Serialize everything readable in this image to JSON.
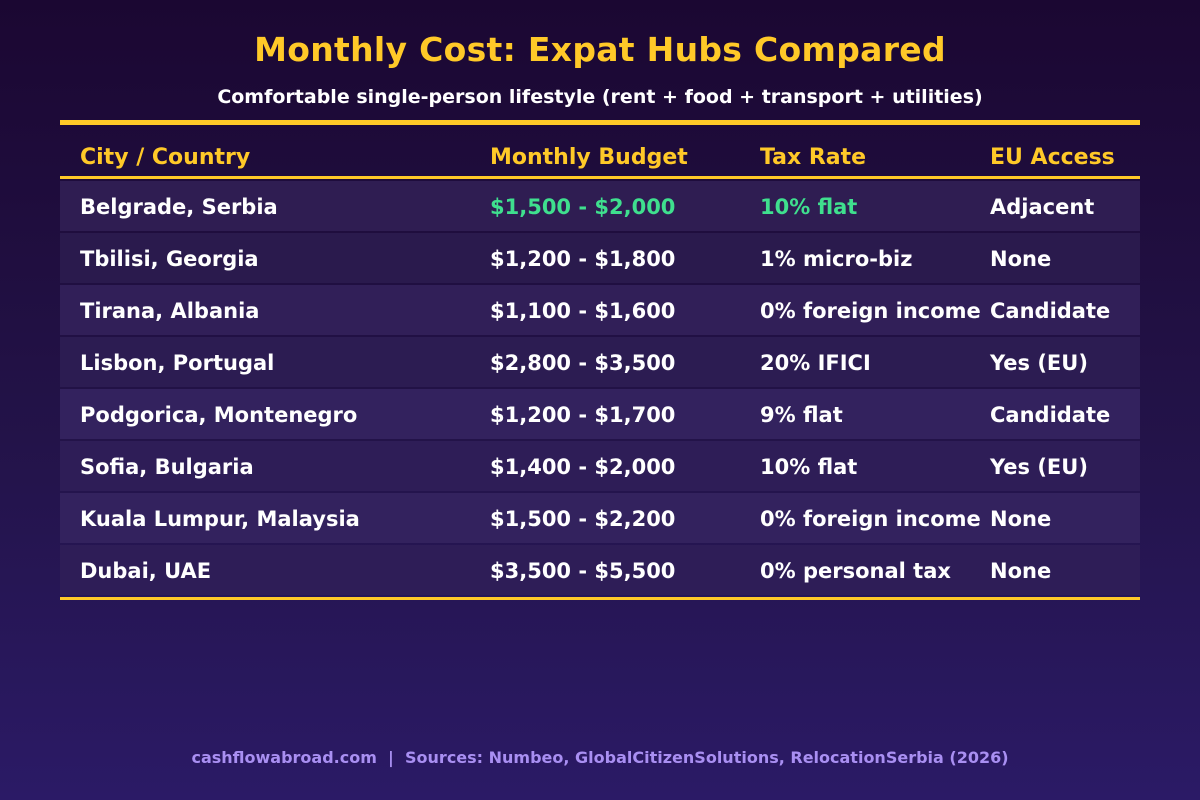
{
  "chart_data": {
    "type": "table",
    "title": "Monthly Cost: Expat Hubs Compared",
    "subtitle": "Comfortable single-person lifestyle (rent + food + transport + utilities)",
    "columns": [
      "City / Country",
      "Monthly Budget",
      "Tax Rate",
      "EU Access"
    ],
    "rows": [
      [
        "Belgrade, Serbia",
        "$1,500 - $2,000",
        "10% flat",
        "Adjacent"
      ],
      [
        "Tbilisi, Georgia",
        "$1,200 - $1,800",
        "1% micro-biz",
        "None"
      ],
      [
        "Tirana, Albania",
        "$1,100 - $1,600",
        "0% foreign income",
        "Candidate"
      ],
      [
        "Lisbon, Portugal",
        "$2,800 - $3,500",
        "20% IFICI",
        "Yes (EU)"
      ],
      [
        "Podgorica, Montenegro",
        "$1,200 - $1,700",
        "9% flat",
        "Candidate"
      ],
      [
        "Sofia, Bulgaria",
        "$1,400 - $2,000",
        "10% flat",
        "Yes (EU)"
      ],
      [
        "Kuala Lumpur, Malaysia",
        "$1,500 - $2,200",
        "0% foreign income",
        "None"
      ],
      [
        "Dubai, UAE",
        "$3,500 - $5,500",
        "0% personal tax",
        "None"
      ]
    ],
    "highlighted_row": 0,
    "colors": {
      "accent": "#ffc928",
      "highlight": "#3fdf8e",
      "text": "#ffffff",
      "footer": "#a98ff2"
    }
  },
  "footer": "cashflowabroad.com  |  Sources: Numbeo, GlobalCitizenSolutions, RelocationSerbia (2026)"
}
